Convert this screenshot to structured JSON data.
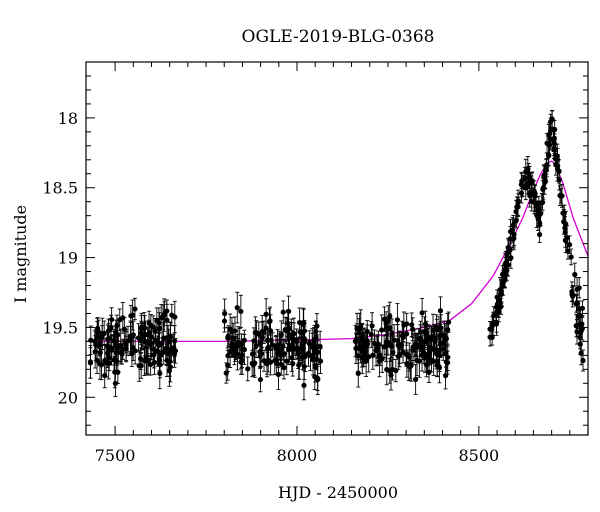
{
  "chart_data": {
    "type": "scatter",
    "title": "OGLE-2019-BLG-0368",
    "xlabel": "HJD - 2450000",
    "ylabel": "I magnitude",
    "xlim": [
      7420,
      8800
    ],
    "ylim": [
      20.27,
      17.6
    ],
    "y_inverted": true,
    "grid": false,
    "x_ticks": [
      7500,
      8000,
      8500
    ],
    "y_ticks": [
      18,
      18.5,
      19,
      19.5,
      20
    ],
    "x_tick_labels": [
      "7500",
      "8000",
      "8500"
    ],
    "y_tick_labels": [
      "18",
      "18.5",
      "19",
      "19.5",
      "20"
    ],
    "colors": {
      "data": "#000000",
      "model": "#d400d4",
      "axes": "#000000"
    },
    "series": [
      {
        "kind": "points_with_errorbars",
        "seasons": [
          {
            "x_range": [
              7430,
              7670
            ],
            "mean_mag": 19.62,
            "scatter": 0.14,
            "error": 0.09,
            "n": 140
          },
          {
            "x_range": [
              7800,
              8065
            ],
            "mean_mag": 19.64,
            "scatter": 0.14,
            "error": 0.09,
            "n": 150
          },
          {
            "x_range": [
              8160,
              8420
            ],
            "mean_mag": 19.62,
            "scatter": 0.13,
            "error": 0.09,
            "n": 150
          },
          {
            "x_range": [
              8530,
              8790
            ],
            "shape": "double-peaked rise",
            "n": 170
          }
        ],
        "peaks": [
          {
            "x": 8625,
            "mag": 18.36
          },
          {
            "x": 8700,
            "mag": 18.02
          }
        ]
      },
      {
        "kind": "model_curve",
        "points": [
          [
            7420,
            19.6
          ],
          [
            7600,
            19.6
          ],
          [
            7800,
            19.6
          ],
          [
            8000,
            19.59
          ],
          [
            8150,
            19.58
          ],
          [
            8250,
            19.55
          ],
          [
            8350,
            19.5
          ],
          [
            8420,
            19.45
          ],
          [
            8480,
            19.33
          ],
          [
            8540,
            19.13
          ],
          [
            8580,
            18.93
          ],
          [
            8620,
            18.72
          ],
          [
            8650,
            18.52
          ],
          [
            8670,
            18.4
          ],
          [
            8690,
            18.32
          ],
          [
            8700,
            18.31
          ],
          [
            8710,
            18.33
          ],
          [
            8730,
            18.46
          ],
          [
            8760,
            18.72
          ],
          [
            8800,
            18.99
          ]
        ]
      }
    ]
  }
}
